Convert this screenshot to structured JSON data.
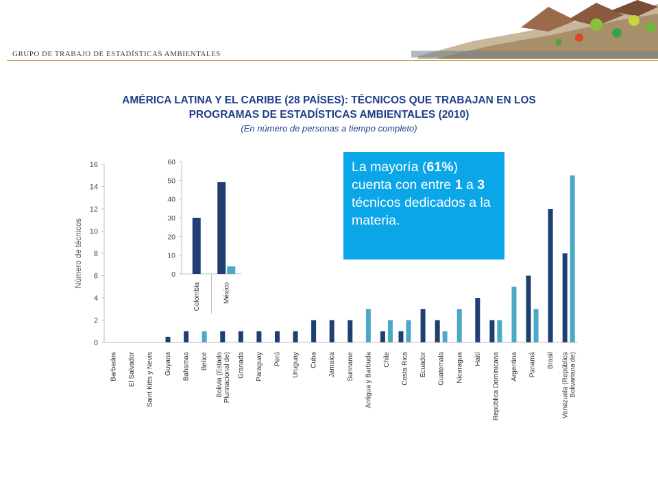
{
  "header": {
    "label": "GRUPO DE TRABAJO DE ESTADÍSTICAS AMBIENTALES"
  },
  "title": {
    "line1": "AMÉRICA LATINA Y EL CARIBE (28 PAÍSES): TÉCNICOS QUE TRABAJAN EN LOS",
    "line2": "PROGRAMAS DE ESTADÍSTICAS AMBIENTALES (2010)",
    "subtitle": "(En número de personas a tiempo completo)"
  },
  "callout": {
    "part1": "La mayoría (",
    "pct": "61%",
    "part2": ") cuenta con entre ",
    "n1": "1",
    "part3": " a ",
    "n3": "3",
    "part4": " técnicos dedicados a la materia."
  },
  "colors": {
    "dark": "#1f3f73",
    "light": "#4ba8c6",
    "title": "#1f3e8a",
    "callout": "#0aa6e8",
    "axis": "#bfbfbf"
  },
  "chart_data": [
    {
      "type": "bar",
      "ylabel": "Número de técnicos",
      "ylim": [
        0,
        16
      ],
      "yticks": [
        0,
        2,
        4,
        6,
        8,
        10,
        12,
        14,
        16
      ],
      "categories": [
        "Barbados",
        "El Salvador",
        "Saint Kitts y Nevis",
        "Guyana",
        "Bahamas",
        "Belice",
        "Bolivia (Estado Plurinacional de)",
        "Granada",
        "Paraguay",
        "Perú",
        "Uruguay",
        "Cuba",
        "Jamaica",
        "Suriname",
        "Antigua y Barbuda",
        "Chile",
        "Costa Rica",
        "Ecuador",
        "Guatemala",
        "Nicaragua",
        "Haití",
        "República Dominicana",
        "Argentina",
        "Panamá",
        "Brasil",
        "Venezuela (República Bolivariana de)"
      ],
      "category_lines": [
        [
          "Barbados"
        ],
        [
          "El Salvador"
        ],
        [
          "Saint Kitts y Nevis"
        ],
        [
          "Guyana"
        ],
        [
          "Bahamas"
        ],
        [
          "Belice"
        ],
        [
          "Bolivia (Estado",
          "Plurinacional de)"
        ],
        [
          "Granada"
        ],
        [
          "Paraguay"
        ],
        [
          "Perú"
        ],
        [
          "Uruguay"
        ],
        [
          "Cuba"
        ],
        [
          "Jamaica"
        ],
        [
          "Suriname"
        ],
        [
          "Antigua y Barbuda"
        ],
        [
          "Chile"
        ],
        [
          "Costa Rica"
        ],
        [
          "Ecuador"
        ],
        [
          "Guatemala"
        ],
        [
          "Nicaragua"
        ],
        [
          "Haití"
        ],
        [
          "República Dominicana"
        ],
        [
          "Argentina"
        ],
        [
          "Panamá"
        ],
        [
          "Brasil"
        ],
        [
          "Venezuela (República",
          "Bolivariana de)"
        ]
      ],
      "series": [
        {
          "values": [
            0,
            0,
            0,
            0.5,
            1,
            0,
            1,
            1,
            1,
            1,
            1,
            2,
            2,
            2,
            0,
            1,
            1,
            3,
            2,
            0,
            4,
            2,
            0,
            6,
            12,
            8
          ]
        },
        {
          "values": [
            0,
            0,
            0,
            0,
            0,
            1,
            0,
            0,
            0,
            0,
            0,
            0,
            0,
            0,
            3,
            2,
            2,
            0,
            1,
            3,
            0,
            2,
            5,
            3,
            0,
            15
          ]
        }
      ]
    },
    {
      "type": "bar",
      "ylim": [
        0,
        60
      ],
      "yticks": [
        0,
        10,
        20,
        30,
        40,
        50,
        60
      ],
      "categories": [
        "Colombia",
        "México"
      ],
      "series": [
        {
          "values": [
            30,
            49
          ]
        },
        {
          "values": [
            0,
            4
          ]
        }
      ]
    }
  ]
}
